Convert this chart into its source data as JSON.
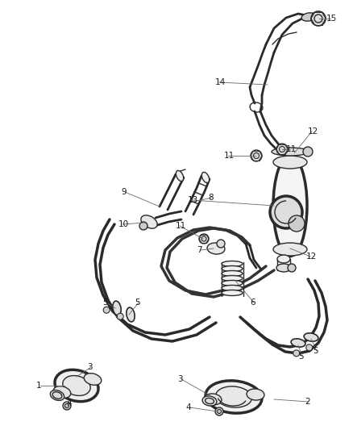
{
  "bg_color": "#ffffff",
  "line_color": "#2a2a2a",
  "label_color": "#1a1a1a",
  "fig_width": 4.38,
  "fig_height": 5.33,
  "dpi": 100,
  "lw_pipe": 2.0,
  "lw_thick": 2.5,
  "lw_thin": 1.0,
  "lw_label_line": 0.6,
  "label_fontsize": 7.5
}
